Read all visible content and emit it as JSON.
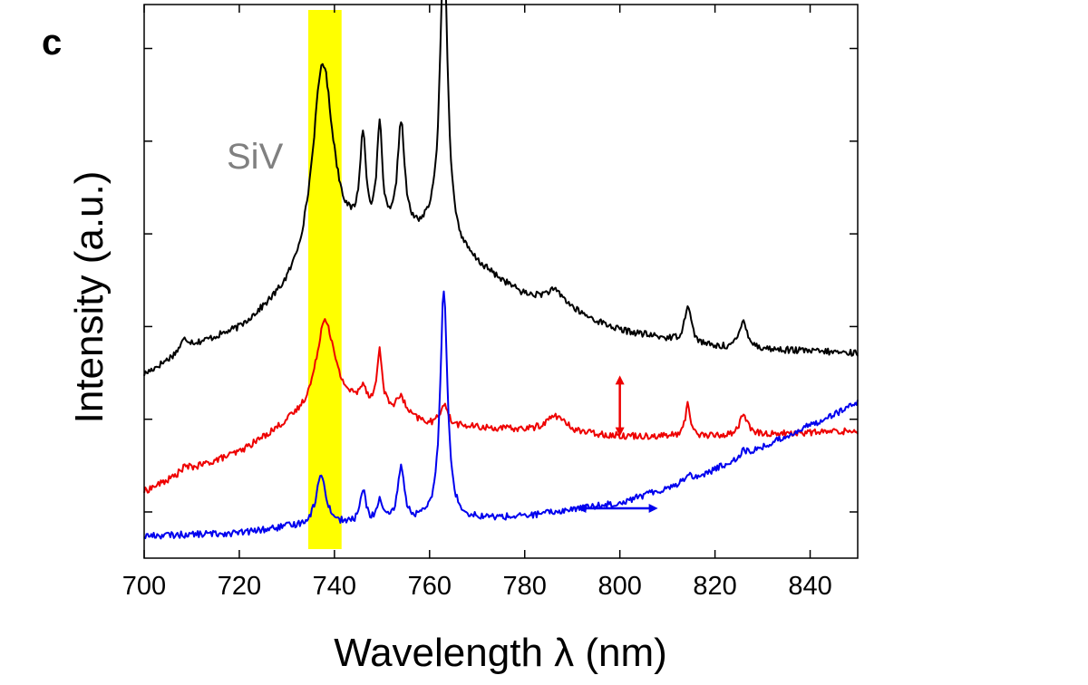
{
  "panel_label": "c",
  "chart_data": {
    "type": "line",
    "title": "",
    "xlabel": "Wavelength λ (nm)",
    "ylabel": "Intensity (a.u.)",
    "xlim": [
      700,
      850
    ],
    "ylim": [
      0,
      1
    ],
    "x_ticks": [
      700,
      720,
      740,
      760,
      780,
      800,
      820,
      840
    ],
    "x_tick_labels": [
      "700",
      "720",
      "740",
      "760",
      "780",
      "800",
      "820",
      "840"
    ],
    "y_tick_labels_shown": false,
    "highlight_band": {
      "label": "SiV",
      "x_range": [
        734.5,
        741.5
      ],
      "color": "#ffff00"
    },
    "annotation_color": "#808080",
    "series": [
      {
        "name": "top",
        "color": "#000000",
        "baseline": [
          [
            700,
            0.33
          ],
          [
            710,
            0.38
          ],
          [
            720,
            0.41
          ],
          [
            730,
            0.47
          ],
          [
            740,
            0.55
          ],
          [
            760,
            0.58
          ],
          [
            780,
            0.47
          ],
          [
            800,
            0.41
          ],
          [
            820,
            0.38
          ],
          [
            850,
            0.37
          ]
        ],
        "peaks": [
          [
            708.5,
            0.02,
            1.2
          ],
          [
            737.5,
            0.36,
            2.6
          ],
          [
            746,
            0.17,
            0.8
          ],
          [
            749.5,
            0.19,
            0.7
          ],
          [
            754,
            0.2,
            0.9
          ],
          [
            763,
            0.53,
            1.0
          ],
          [
            786.5,
            0.03,
            3.0
          ],
          [
            814.3,
            0.07,
            0.8
          ],
          [
            826,
            0.05,
            1.0
          ]
        ]
      },
      {
        "name": "middle",
        "color": "#ee0000",
        "baseline": [
          [
            700,
            0.12
          ],
          [
            710,
            0.16
          ],
          [
            720,
            0.19
          ],
          [
            730,
            0.24
          ],
          [
            740,
            0.28
          ],
          [
            750,
            0.27
          ],
          [
            760,
            0.24
          ],
          [
            780,
            0.23
          ],
          [
            800,
            0.22
          ],
          [
            820,
            0.22
          ],
          [
            850,
            0.23
          ]
        ],
        "peaks": [
          [
            708.5,
            0.01,
            1.2
          ],
          [
            738,
            0.16,
            2.2
          ],
          [
            746,
            0.03,
            0.7
          ],
          [
            749.5,
            0.1,
            0.6
          ],
          [
            754,
            0.03,
            1.0
          ],
          [
            763,
            0.04,
            0.9
          ],
          [
            786.5,
            0.03,
            2.5
          ],
          [
            814.3,
            0.06,
            0.6
          ],
          [
            826,
            0.04,
            0.9
          ]
        ]
      },
      {
        "name": "bottom",
        "color": "#0000ee",
        "baseline": [
          [
            700,
            0.04
          ],
          [
            720,
            0.045
          ],
          [
            730,
            0.055
          ],
          [
            760,
            0.065
          ],
          [
            780,
            0.075
          ],
          [
            800,
            0.1
          ],
          [
            815,
            0.14
          ],
          [
            830,
            0.2
          ],
          [
            850,
            0.28
          ]
        ],
        "peaks": [
          [
            737.2,
            0.09,
            1.3
          ],
          [
            746,
            0.06,
            0.7
          ],
          [
            749.5,
            0.04,
            0.6
          ],
          [
            754,
            0.1,
            0.8
          ],
          [
            763,
            0.42,
            0.9
          ],
          [
            814.3,
            0.015,
            0.8
          ],
          [
            826,
            0.01,
            1.0
          ]
        ]
      }
    ],
    "markers": [
      {
        "name": "red-vertical-arrow",
        "color": "#ee0000",
        "orientation": "vertical",
        "x": 800,
        "y_range": [
          0.22,
          0.33
        ]
      },
      {
        "name": "blue-horizontal-arrow",
        "color": "#0000ee",
        "orientation": "horizontal",
        "y": 0.09,
        "x_range": [
          791,
          808
        ]
      }
    ]
  }
}
